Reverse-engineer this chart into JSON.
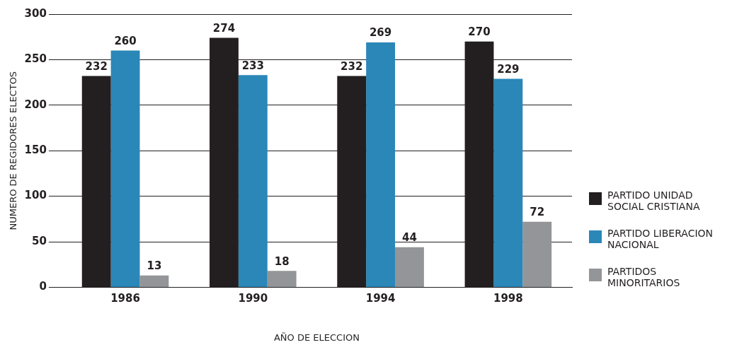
{
  "chart_data": {
    "type": "bar",
    "xlabel": "AÑO DE ELECCION",
    "ylabel": "NUMERO DE REGIDORES ELECTOS",
    "categories": [
      "1986",
      "1990",
      "1994",
      "1998"
    ],
    "series": [
      {
        "name": "PARTIDO UNIDAD SOCIAL CRISTIANA",
        "color": "#231f20",
        "values": [
          232,
          274,
          232,
          270
        ]
      },
      {
        "name": "PARTIDO LIBERACION NACIONAL",
        "color": "#2a87b8",
        "values": [
          260,
          233,
          269,
          229
        ]
      },
      {
        "name": "PARTIDOS MINORITARIOS",
        "color": "#939598",
        "values": [
          13,
          18,
          44,
          72
        ]
      }
    ],
    "ylim": [
      0,
      300
    ],
    "yticks": [
      0,
      50,
      100,
      150,
      200,
      250,
      300
    ],
    "grid": "y",
    "legend": "right",
    "data_labels": true
  }
}
